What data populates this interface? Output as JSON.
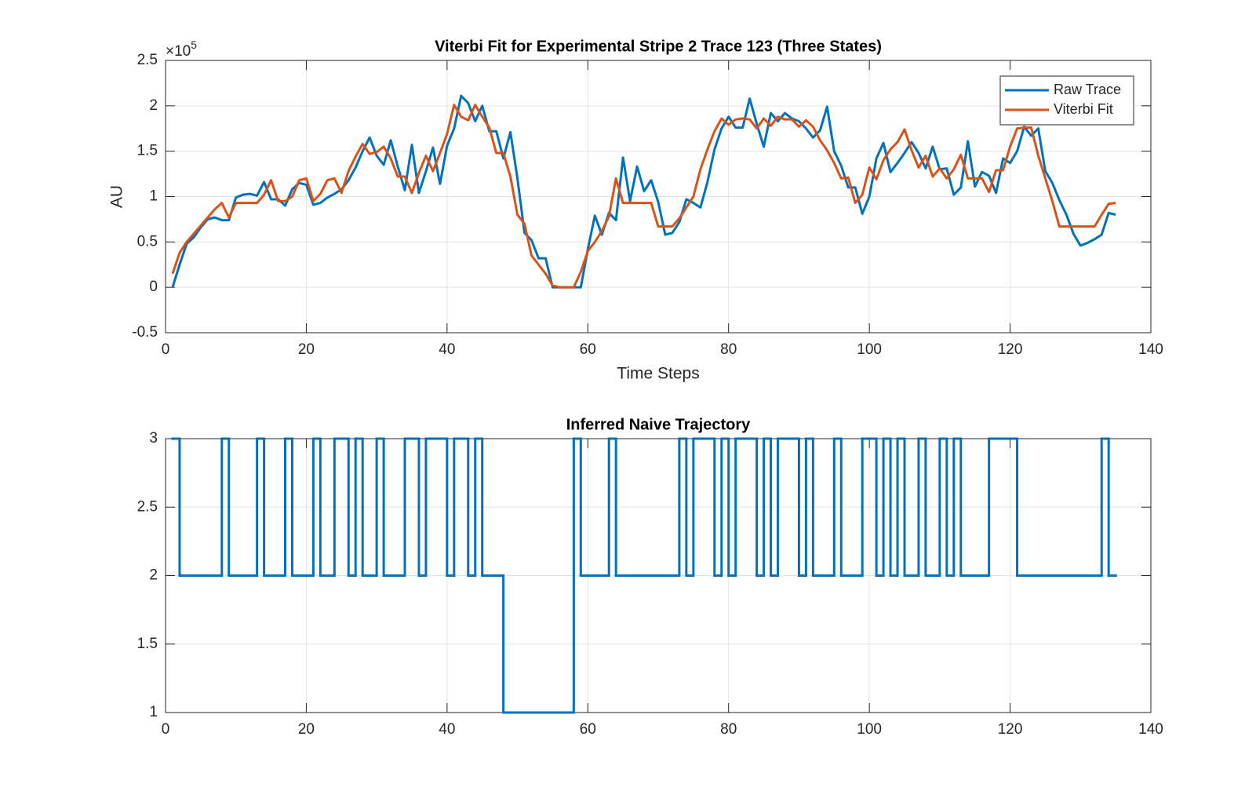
{
  "chart_data": [
    {
      "type": "line",
      "title": "Viterbi Fit for Experimental Stripe 2 Trace 123 (Three States)",
      "x_label": "Time Steps",
      "y_label": "AU",
      "y_multiplier": {
        "base": "×10",
        "power": "5"
      },
      "xlim": [
        0,
        140
      ],
      "xticks": [
        0,
        20,
        40,
        60,
        80,
        100,
        120,
        140
      ],
      "ylim": [
        -0.5,
        2.5
      ],
      "yticks": [
        -0.5,
        0,
        0.5,
        1,
        1.5,
        2,
        2.5
      ],
      "grid": true,
      "legend": "northeast",
      "x": [
        1,
        2,
        3,
        4,
        5,
        6,
        7,
        8,
        9,
        10,
        11,
        12,
        13,
        14,
        15,
        16,
        17,
        18,
        19,
        20,
        21,
        22,
        23,
        24,
        25,
        26,
        27,
        28,
        29,
        30,
        31,
        32,
        33,
        34,
        35,
        36,
        37,
        38,
        39,
        40,
        41,
        42,
        43,
        44,
        45,
        46,
        47,
        48,
        49,
        50,
        51,
        52,
        53,
        54,
        55,
        56,
        57,
        58,
        59,
        60,
        61,
        62,
        63,
        64,
        65,
        66,
        67,
        68,
        69,
        70,
        71,
        72,
        73,
        74,
        75,
        76,
        77,
        78,
        79,
        80,
        81,
        82,
        83,
        84,
        85,
        86,
        87,
        88,
        89,
        90,
        91,
        92,
        93,
        94,
        95,
        96,
        97,
        98,
        99,
        100,
        101,
        102,
        103,
        104,
        105,
        106,
        107,
        108,
        109,
        110,
        111,
        112,
        113,
        114,
        115,
        116,
        117,
        118,
        119,
        120,
        121,
        122,
        123,
        124,
        125,
        126,
        127,
        128,
        129,
        130,
        131,
        132,
        133,
        134,
        135
      ],
      "series": [
        {
          "name": "Raw Trace",
          "color": "#0072BD",
          "values": [
            0.0,
            0.25,
            0.48,
            0.55,
            0.66,
            0.75,
            0.77,
            0.74,
            0.74,
            0.99,
            1.02,
            1.03,
            1.01,
            1.16,
            0.97,
            0.97,
            0.9,
            1.08,
            1.15,
            1.13,
            0.91,
            0.93,
            0.99,
            1.03,
            1.08,
            1.18,
            1.32,
            1.5,
            1.65,
            1.45,
            1.35,
            1.62,
            1.33,
            1.07,
            1.57,
            1.04,
            1.28,
            1.54,
            1.14,
            1.56,
            1.75,
            2.11,
            2.03,
            1.83,
            2.0,
            1.72,
            1.72,
            1.42,
            1.71,
            1.2,
            0.6,
            0.52,
            0.32,
            0.32,
            0.0,
            0.0,
            0.0,
            0.0,
            0.0,
            0.42,
            0.79,
            0.58,
            0.82,
            0.74,
            1.43,
            0.95,
            1.33,
            1.06,
            1.18,
            0.94,
            0.58,
            0.6,
            0.72,
            0.97,
            0.93,
            0.88,
            1.16,
            1.52,
            1.75,
            1.88,
            1.76,
            1.76,
            2.08,
            1.8,
            1.55,
            1.92,
            1.83,
            1.92,
            1.86,
            1.83,
            1.75,
            1.65,
            1.73,
            1.99,
            1.5,
            1.34,
            1.1,
            1.1,
            0.81,
            1.0,
            1.42,
            1.59,
            1.27,
            1.37,
            1.48,
            1.6,
            1.48,
            1.31,
            1.55,
            1.3,
            1.31,
            1.02,
            1.1,
            1.61,
            1.11,
            1.27,
            1.23,
            1.04,
            1.42,
            1.37,
            1.5,
            1.77,
            1.67,
            1.75,
            1.28,
            1.15,
            0.96,
            0.8,
            0.59,
            0.46,
            0.49,
            0.53,
            0.58,
            0.82,
            0.8
          ]
        },
        {
          "name": "Viterbi Fit",
          "color": "#D95319",
          "values": [
            0.15,
            0.38,
            0.5,
            0.59,
            0.68,
            0.77,
            0.86,
            0.93,
            0.77,
            0.93,
            0.93,
            0.93,
            0.93,
            1.02,
            1.18,
            0.95,
            0.95,
            1.0,
            1.18,
            1.2,
            0.95,
            1.03,
            1.18,
            1.2,
            1.04,
            1.28,
            1.44,
            1.58,
            1.47,
            1.49,
            1.55,
            1.42,
            1.22,
            1.22,
            1.04,
            1.26,
            1.45,
            1.28,
            1.48,
            1.69,
            2.01,
            1.88,
            1.84,
            2.01,
            1.88,
            1.76,
            1.48,
            1.48,
            1.22,
            0.8,
            0.7,
            0.35,
            0.25,
            0.15,
            0.02,
            0.0,
            0.0,
            0.0,
            0.17,
            0.4,
            0.5,
            0.62,
            0.78,
            1.2,
            0.93,
            0.93,
            0.93,
            0.93,
            0.93,
            0.67,
            0.67,
            0.67,
            0.76,
            0.88,
            1.0,
            1.3,
            1.52,
            1.72,
            1.86,
            1.79,
            1.85,
            1.86,
            1.85,
            1.75,
            1.86,
            1.78,
            1.88,
            1.85,
            1.85,
            1.77,
            1.84,
            1.77,
            1.62,
            1.51,
            1.37,
            1.2,
            1.21,
            0.93,
            1.02,
            1.32,
            1.19,
            1.4,
            1.52,
            1.6,
            1.74,
            1.51,
            1.32,
            1.45,
            1.22,
            1.31,
            1.2,
            1.3,
            1.46,
            1.2,
            1.2,
            1.2,
            1.05,
            1.29,
            1.29,
            1.55,
            1.75,
            1.76,
            1.76,
            1.45,
            1.2,
            0.95,
            0.67,
            0.67,
            0.67,
            0.67,
            0.67,
            0.67,
            0.8,
            0.92,
            0.93
          ]
        }
      ]
    },
    {
      "type": "stairs",
      "title": "Inferred Naive Trajectory",
      "xlim": [
        0,
        140
      ],
      "xticks": [
        0,
        20,
        40,
        60,
        80,
        100,
        120,
        140
      ],
      "ylim": [
        1,
        3
      ],
      "yticks": [
        1,
        1.5,
        2,
        2.5,
        3
      ],
      "grid": true,
      "x": [
        1,
        2,
        3,
        4,
        5,
        6,
        7,
        8,
        9,
        10,
        11,
        12,
        13,
        14,
        15,
        16,
        17,
        18,
        19,
        20,
        21,
        22,
        23,
        24,
        25,
        26,
        27,
        28,
        29,
        30,
        31,
        32,
        33,
        34,
        35,
        36,
        37,
        38,
        39,
        40,
        41,
        42,
        43,
        44,
        45,
        46,
        47,
        48,
        49,
        50,
        51,
        52,
        53,
        54,
        55,
        56,
        57,
        58,
        59,
        60,
        61,
        62,
        63,
        64,
        65,
        66,
        67,
        68,
        69,
        70,
        71,
        72,
        73,
        74,
        75,
        76,
        77,
        78,
        79,
        80,
        81,
        82,
        83,
        84,
        85,
        86,
        87,
        88,
        89,
        90,
        91,
        92,
        93,
        94,
        95,
        96,
        97,
        98,
        99,
        100,
        101,
        102,
        103,
        104,
        105,
        106,
        107,
        108,
        109,
        110,
        111,
        112,
        113,
        114,
        115,
        116,
        117,
        118,
        119,
        120,
        121,
        122,
        123,
        124,
        125,
        126,
        127,
        128,
        129,
        130,
        131,
        132,
        133,
        134,
        135
      ],
      "series": [
        {
          "color": "#0072BD",
          "values": [
            3,
            2,
            2,
            2,
            2,
            2,
            2,
            3,
            2,
            2,
            2,
            2,
            3,
            2,
            2,
            2,
            3,
            2,
            2,
            2,
            3,
            2,
            2,
            3,
            3,
            2,
            3,
            2,
            2,
            3,
            2,
            2,
            2,
            3,
            3,
            2,
            3,
            3,
            3,
            2,
            3,
            3,
            2,
            3,
            2,
            2,
            2,
            1,
            1,
            1,
            1,
            1,
            1,
            1,
            1,
            1,
            1,
            3,
            2,
            2,
            2,
            2,
            3,
            2,
            2,
            2,
            2,
            2,
            2,
            2,
            2,
            2,
            3,
            2,
            3,
            3,
            3,
            2,
            3,
            2,
            3,
            3,
            3,
            2,
            3,
            2,
            3,
            3,
            3,
            2,
            3,
            2,
            2,
            2,
            3,
            2,
            2,
            2,
            3,
            3,
            2,
            3,
            2,
            3,
            2,
            2,
            3,
            2,
            2,
            3,
            2,
            3,
            2,
            2,
            2,
            2,
            3,
            3,
            3,
            3,
            2,
            2,
            2,
            2,
            2,
            2,
            2,
            2,
            2,
            2,
            2,
            2,
            3,
            2,
            2
          ]
        }
      ]
    }
  ]
}
